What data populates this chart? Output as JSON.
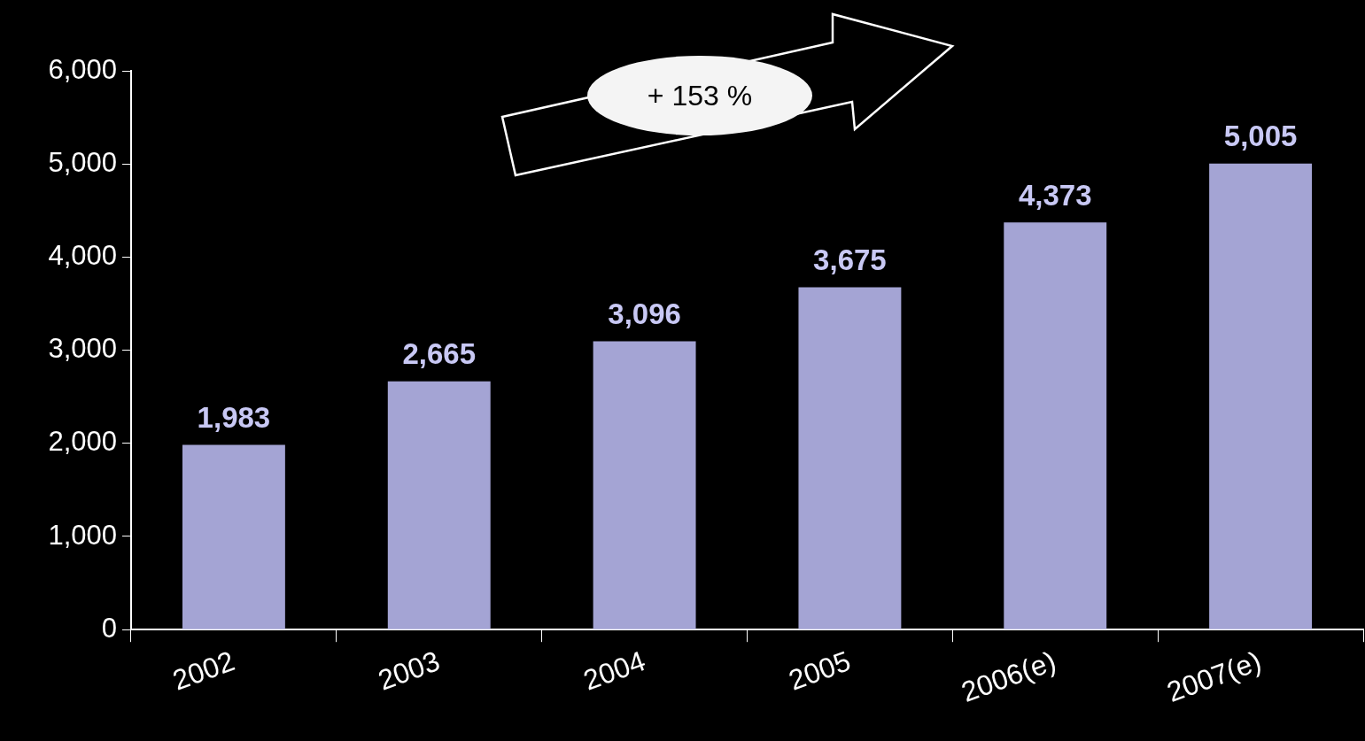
{
  "chart_data": {
    "type": "bar",
    "categories": [
      "2002",
      "2003",
      "2004",
      "2005",
      "2006(e)",
      "2007(e)"
    ],
    "values": [
      1983,
      2665,
      3096,
      3675,
      4373,
      5005
    ],
    "value_labels": [
      "1,983",
      "2,665",
      "3,096",
      "3,675",
      "4,373",
      "5,005"
    ],
    "color": "#a4a4d4",
    "ylim": [
      0,
      6000
    ],
    "yticks": [
      {
        "value": 0,
        "label": "0"
      },
      {
        "value": 1000,
        "label": "1,000"
      },
      {
        "value": 2000,
        "label": "2,000"
      },
      {
        "value": 3000,
        "label": "3,000"
      },
      {
        "value": 4000,
        "label": "4,000"
      },
      {
        "value": 5000,
        "label": "5,000"
      },
      {
        "value": 6000,
        "label": "6,000"
      }
    ],
    "grid": false,
    "legend": false,
    "annotations": [
      "+ 153 %"
    ]
  }
}
